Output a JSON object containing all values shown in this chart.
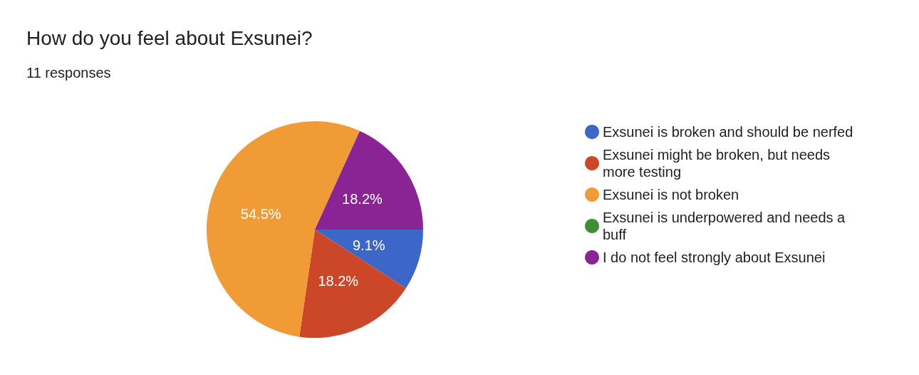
{
  "chart_data": {
    "type": "pie",
    "title": "How do you feel about Exsunei?",
    "subtitle": "11 responses",
    "categories": [
      "Exsunei is broken and should be nerfed",
      "Exsunei might be broken, but needs more testing",
      "Exsunei is not broken",
      "Exsunei is underpowered and needs a buff",
      "I do not feel strongly about Exsunei"
    ],
    "values": [
      9.1,
      18.2,
      54.5,
      0,
      18.2
    ],
    "colors": [
      "#3c67c9",
      "#cc4628",
      "#f09b36",
      "#3e8f34",
      "#8a2394"
    ],
    "value_labels": [
      "9.1%",
      "18.2%",
      "54.5%",
      null,
      "18.2%"
    ],
    "legend": "right"
  }
}
